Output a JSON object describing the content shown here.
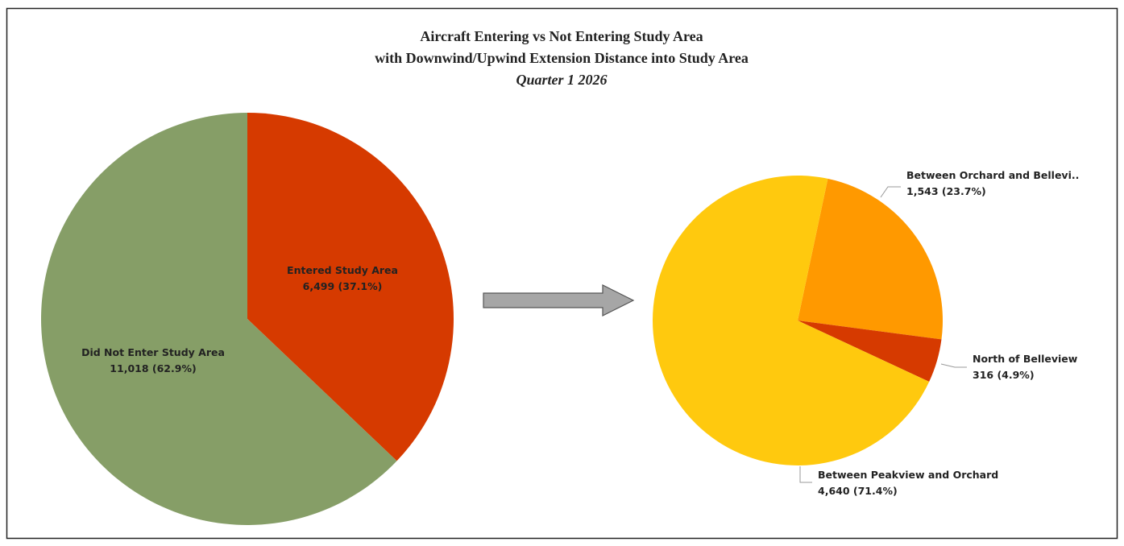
{
  "header": {
    "title_lines": [
      "Aircraft Entering vs Not Entering Study Area",
      "with Downwind/Upwind Extension Distance into Study Area"
    ],
    "subtitle": "Quarter 1 2026"
  },
  "chart_data": [
    {
      "type": "pie",
      "categories": [
        "Entered Study Area",
        "Did Not Enter Study Area"
      ],
      "values": [
        6499,
        11018
      ],
      "value_labels": [
        "6,499 (37.1%)",
        "11,018 (62.9%)"
      ],
      "colors": [
        "#d63a00",
        "#869e67"
      ]
    },
    {
      "type": "pie",
      "categories": [
        "Between Orchard and Bellevi..",
        "North of Belleview",
        "Between Peakview and Orchard"
      ],
      "values": [
        1543,
        316,
        4640
      ],
      "value_labels": [
        "1,543 (23.7%)",
        "316 (4.9%)",
        "4,640 (71.4%)"
      ],
      "colors": [
        "#ff9900",
        "#d63a00",
        "#ffc90e"
      ]
    }
  ]
}
